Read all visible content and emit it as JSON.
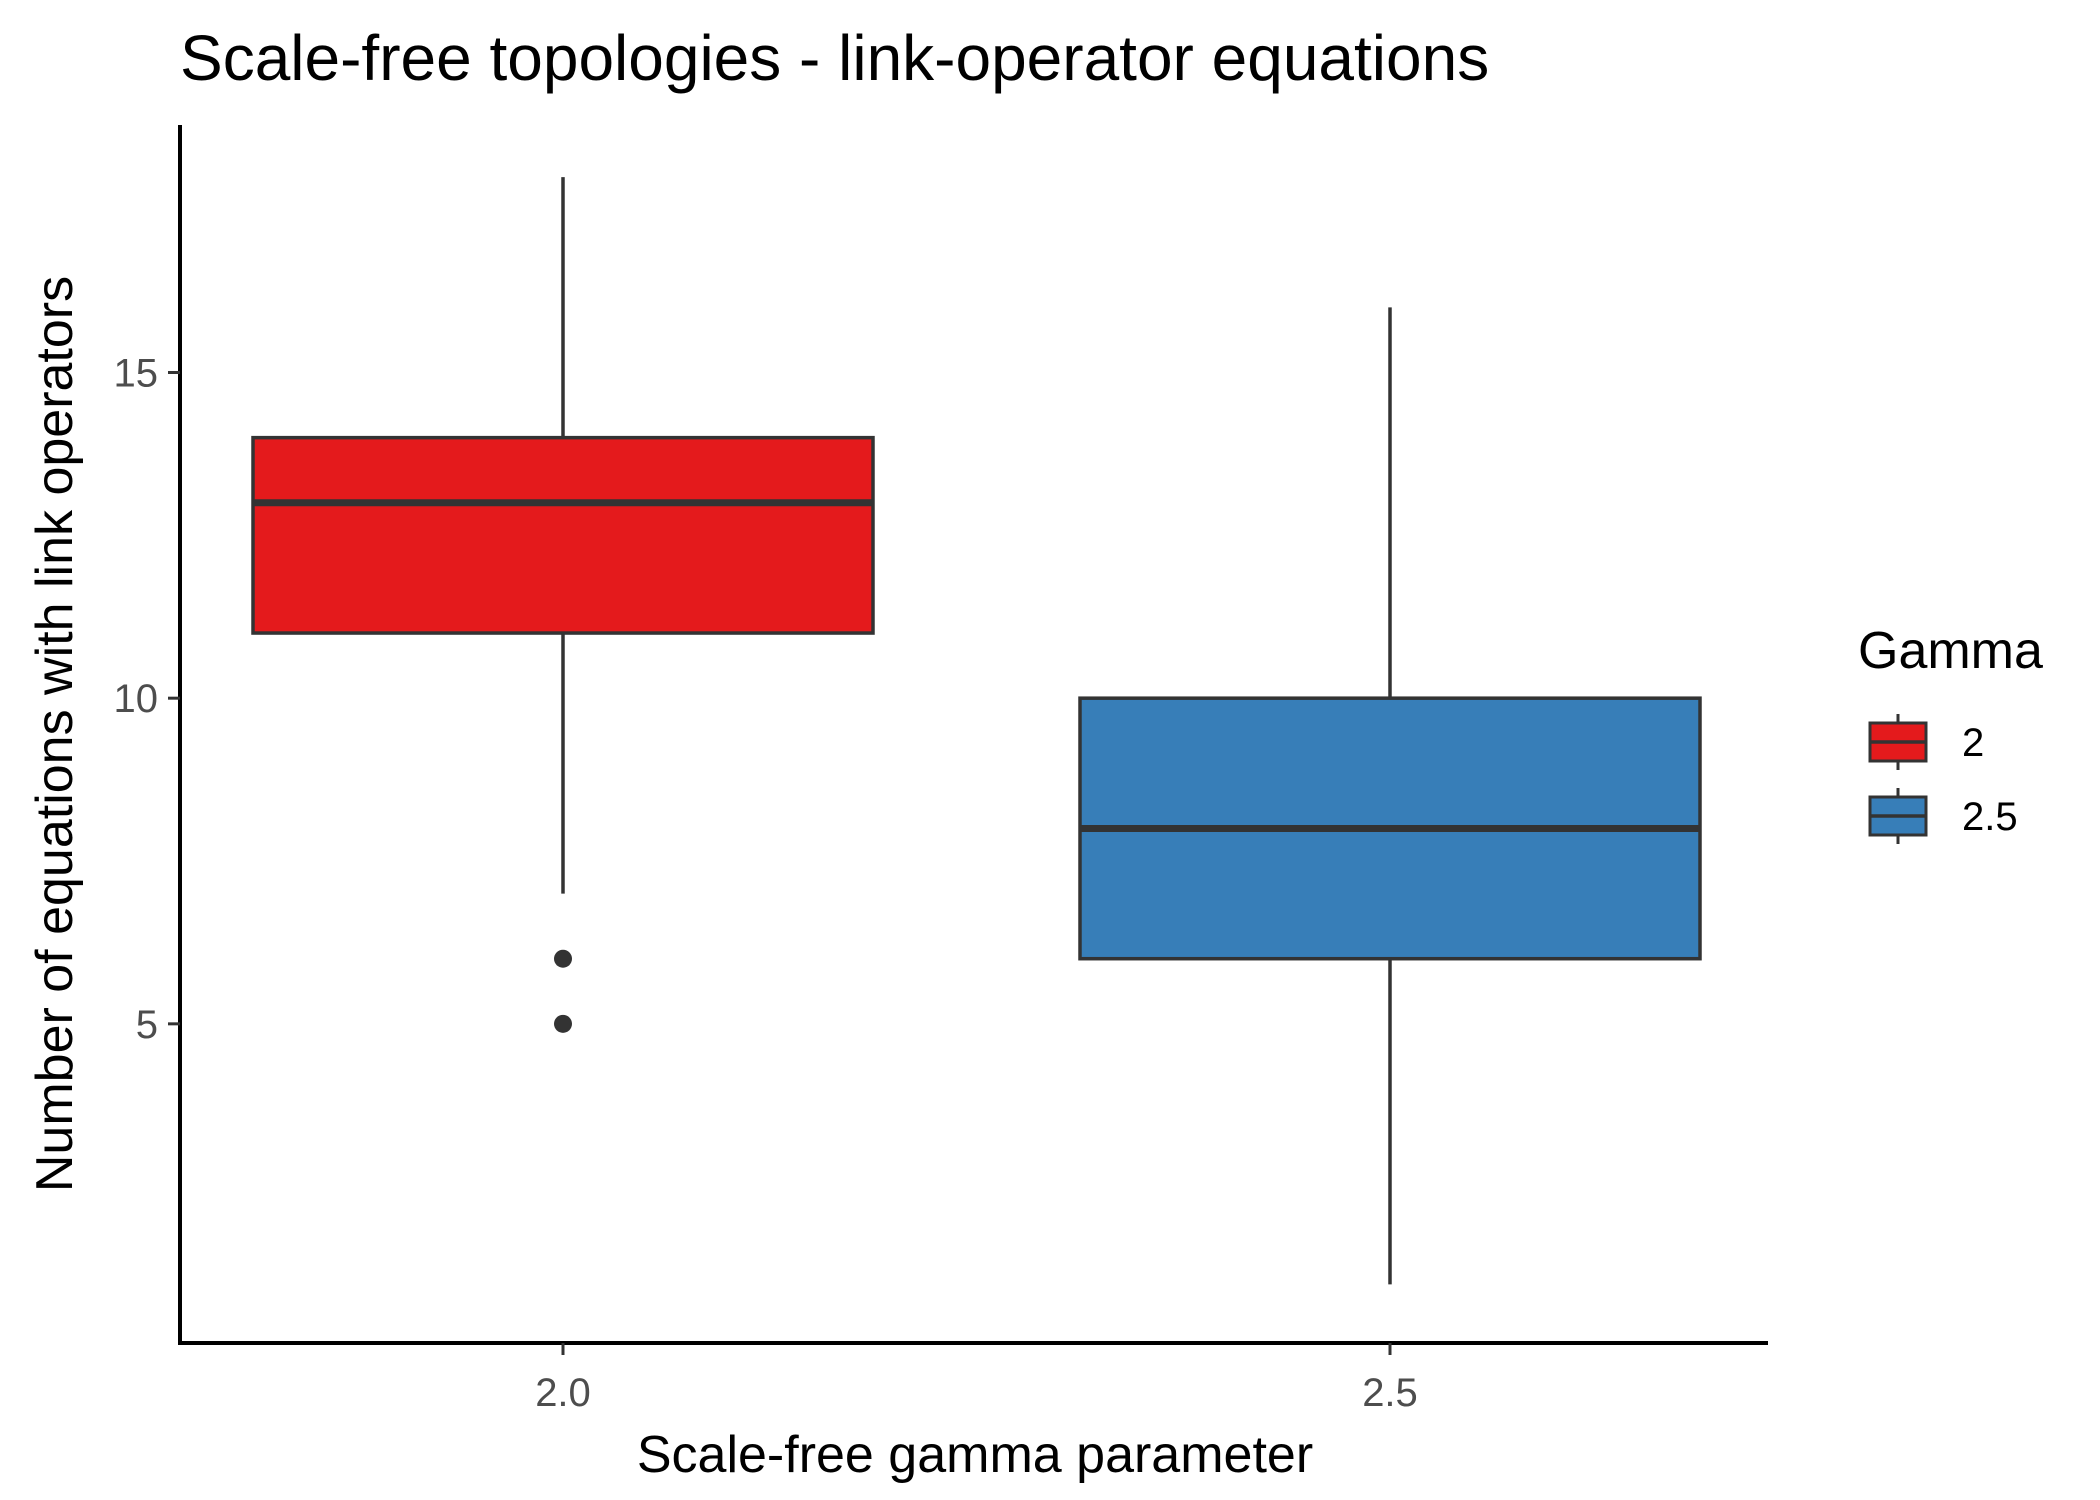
{
  "chart_data": {
    "type": "box",
    "title": "Scale-free topologies - link-operator equations",
    "xlabel": "Scale-free gamma parameter",
    "ylabel": "Number of equations with link operators",
    "categories": [
      "2.0",
      "2.5"
    ],
    "ylim": [
      0.1,
      18.8
    ],
    "yticks": [
      5,
      10,
      15
    ],
    "series": [
      {
        "name": "2",
        "color": "#e41a1c",
        "q1": 11,
        "median": 13,
        "q3": 14,
        "whisker_low": 7,
        "whisker_high": 18,
        "outliers": [
          6,
          5
        ]
      },
      {
        "name": "2.5",
        "color": "#377eb8",
        "q1": 6,
        "median": 8,
        "q3": 10,
        "whisker_low": 1,
        "whisker_high": 16,
        "outliers": []
      }
    ],
    "legend": {
      "title": "Gamma",
      "position": "right"
    },
    "grid": false
  }
}
